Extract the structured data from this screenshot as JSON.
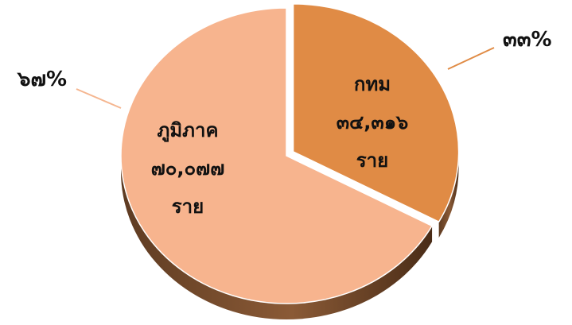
{
  "chart_data": {
    "type": "pie",
    "title": "",
    "slices": [
      {
        "label": "กทม",
        "value_text": "๓๔,๓๑๖",
        "unit": "ราย",
        "value": 34316,
        "percent_label": "๓๓%",
        "color": "#E08B45"
      },
      {
        "label": "ภูมิภาค",
        "value_text": "๗๐,๐๗๗",
        "unit": "ราย",
        "value": 70077,
        "percent_label": "๖๗%",
        "color": "#F7B48E"
      }
    ],
    "leader_line_color": "#E08B45",
    "leader_line_color_secondary": "#F5B690",
    "legend": "none",
    "style": "3d-exploded"
  }
}
